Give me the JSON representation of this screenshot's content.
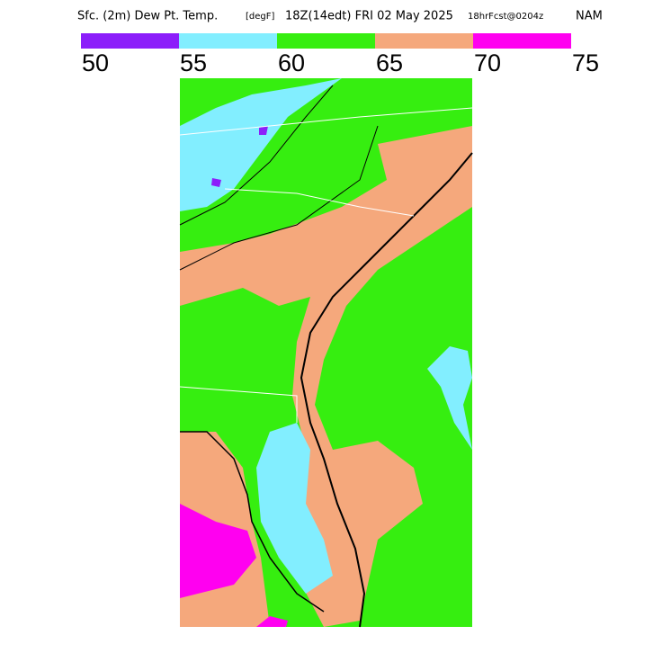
{
  "header": {
    "title": "Sfc. (2m) Dew Pt. Temp.",
    "units": "[degF]",
    "valid": "18Z(14edt) FRI 02 May 2025",
    "run": "18hrFcst@0204z",
    "model": "NAM"
  },
  "colorbar": {
    "bins": [
      50,
      55,
      60,
      65,
      70,
      75
    ],
    "colors": [
      "#8c1efa",
      "#82eeff",
      "#36ee10",
      "#f5a87c",
      "#ff00f0"
    ]
  }
}
